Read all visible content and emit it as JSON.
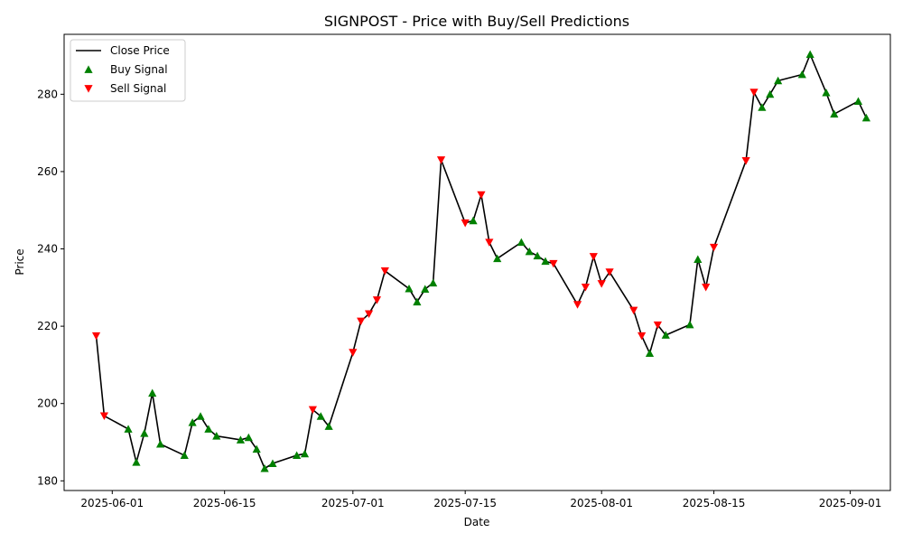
{
  "chart_data": {
    "type": "line",
    "title": "SIGNPOST - Price with Buy/Sell Predictions",
    "xlabel": "Date",
    "ylabel": "Price",
    "x_range": [
      "2025-05-26",
      "2025-09-06"
    ],
    "ylim": [
      177.5,
      295.5
    ],
    "x_ticks": [
      "2025-06-01",
      "2025-06-15",
      "2025-07-01",
      "2025-07-15",
      "2025-08-01",
      "2025-08-15",
      "2025-09-01"
    ],
    "y_ticks": [
      180,
      200,
      220,
      240,
      260,
      280
    ],
    "grid": false,
    "legend_position": "upper-left",
    "series": [
      {
        "name": "Close Price",
        "mark": "line",
        "color": "#000000",
        "points": [
          [
            "2025-05-30",
            217.5
          ],
          [
            "2025-05-31",
            196.8
          ],
          [
            "2025-06-03",
            193.4
          ],
          [
            "2025-06-04",
            184.8
          ],
          [
            "2025-06-05",
            192.3
          ],
          [
            "2025-06-06",
            202.7
          ],
          [
            "2025-06-07",
            189.5
          ],
          [
            "2025-06-10",
            186.6
          ],
          [
            "2025-06-11",
            195.1
          ],
          [
            "2025-06-12",
            196.7
          ],
          [
            "2025-06-13",
            193.4
          ],
          [
            "2025-06-14",
            191.6
          ],
          [
            "2025-06-17",
            190.6
          ],
          [
            "2025-06-18",
            191.2
          ],
          [
            "2025-06-19",
            188.2
          ],
          [
            "2025-06-20",
            183.2
          ],
          [
            "2025-06-21",
            184.5
          ],
          [
            "2025-06-24",
            186.6
          ],
          [
            "2025-06-25",
            187.0
          ],
          [
            "2025-06-26",
            198.4
          ],
          [
            "2025-06-27",
            196.7
          ],
          [
            "2025-06-28",
            194.1
          ],
          [
            "2025-07-01",
            213.2
          ],
          [
            "2025-07-02",
            221.3
          ],
          [
            "2025-07-03",
            223.2
          ],
          [
            "2025-07-04",
            226.8
          ],
          [
            "2025-07-05",
            234.3
          ],
          [
            "2025-07-08",
            229.7
          ],
          [
            "2025-07-09",
            226.3
          ],
          [
            "2025-07-10",
            229.6
          ],
          [
            "2025-07-11",
            231.2
          ],
          [
            "2025-07-12",
            263.0
          ],
          [
            "2025-07-15",
            246.7
          ],
          [
            "2025-07-16",
            247.3
          ],
          [
            "2025-07-17",
            254.0
          ],
          [
            "2025-07-18",
            241.7
          ],
          [
            "2025-07-19",
            237.5
          ],
          [
            "2025-07-22",
            241.7
          ],
          [
            "2025-07-23",
            239.3
          ],
          [
            "2025-07-24",
            238.2
          ],
          [
            "2025-07-25",
            236.8
          ],
          [
            "2025-07-26",
            236.2
          ],
          [
            "2025-07-29",
            225.6
          ],
          [
            "2025-07-30",
            230.1
          ],
          [
            "2025-07-31",
            238.0
          ],
          [
            "2025-08-01",
            231.0
          ],
          [
            "2025-08-02",
            234.0
          ],
          [
            "2025-08-05",
            224.1
          ],
          [
            "2025-08-06",
            217.5
          ],
          [
            "2025-08-07",
            213.0
          ],
          [
            "2025-08-08",
            220.3
          ],
          [
            "2025-08-09",
            217.7
          ],
          [
            "2025-08-12",
            220.4
          ],
          [
            "2025-08-13",
            237.3
          ],
          [
            "2025-08-14",
            230.1
          ],
          [
            "2025-08-15",
            240.4
          ],
          [
            "2025-08-19",
            262.8
          ],
          [
            "2025-08-20",
            280.5
          ],
          [
            "2025-08-21",
            276.6
          ],
          [
            "2025-08-22",
            280.0
          ],
          [
            "2025-08-23",
            283.5
          ],
          [
            "2025-08-26",
            285.1
          ],
          [
            "2025-08-27",
            290.3
          ],
          [
            "2025-08-29",
            280.4
          ],
          [
            "2025-08-30",
            274.9
          ],
          [
            "2025-09-02",
            278.2
          ],
          [
            "2025-09-03",
            273.9
          ]
        ]
      },
      {
        "name": "Buy Signal",
        "mark": "triangle-up",
        "color": "#008000",
        "points": [
          [
            "2025-06-03",
            193.4
          ],
          [
            "2025-06-04",
            184.8
          ],
          [
            "2025-06-05",
            192.3
          ],
          [
            "2025-06-06",
            202.7
          ],
          [
            "2025-06-07",
            189.5
          ],
          [
            "2025-06-10",
            186.6
          ],
          [
            "2025-06-11",
            195.1
          ],
          [
            "2025-06-12",
            196.7
          ],
          [
            "2025-06-13",
            193.4
          ],
          [
            "2025-06-14",
            191.6
          ],
          [
            "2025-06-17",
            190.6
          ],
          [
            "2025-06-18",
            191.2
          ],
          [
            "2025-06-19",
            188.2
          ],
          [
            "2025-06-20",
            183.2
          ],
          [
            "2025-06-21",
            184.5
          ],
          [
            "2025-06-24",
            186.6
          ],
          [
            "2025-06-25",
            187.0
          ],
          [
            "2025-06-27",
            196.7
          ],
          [
            "2025-06-28",
            194.1
          ],
          [
            "2025-07-08",
            229.7
          ],
          [
            "2025-07-09",
            226.3
          ],
          [
            "2025-07-10",
            229.6
          ],
          [
            "2025-07-11",
            231.2
          ],
          [
            "2025-07-16",
            247.3
          ],
          [
            "2025-07-19",
            237.5
          ],
          [
            "2025-07-22",
            241.7
          ],
          [
            "2025-07-23",
            239.3
          ],
          [
            "2025-07-24",
            238.2
          ],
          [
            "2025-07-25",
            236.8
          ],
          [
            "2025-08-07",
            213.0
          ],
          [
            "2025-08-09",
            217.7
          ],
          [
            "2025-08-12",
            220.4
          ],
          [
            "2025-08-13",
            237.3
          ],
          [
            "2025-08-21",
            276.6
          ],
          [
            "2025-08-22",
            280.0
          ],
          [
            "2025-08-23",
            283.5
          ],
          [
            "2025-08-26",
            285.1
          ],
          [
            "2025-08-27",
            290.3
          ],
          [
            "2025-08-29",
            280.4
          ],
          [
            "2025-08-30",
            274.9
          ],
          [
            "2025-09-02",
            278.2
          ],
          [
            "2025-09-03",
            273.9
          ]
        ]
      },
      {
        "name": "Sell Signal",
        "mark": "triangle-down",
        "color": "#ff0000",
        "points": [
          [
            "2025-05-30",
            217.5
          ],
          [
            "2025-05-31",
            196.8
          ],
          [
            "2025-06-26",
            198.4
          ],
          [
            "2025-07-01",
            213.2
          ],
          [
            "2025-07-02",
            221.3
          ],
          [
            "2025-07-03",
            223.2
          ],
          [
            "2025-07-04",
            226.8
          ],
          [
            "2025-07-05",
            234.3
          ],
          [
            "2025-07-12",
            263.0
          ],
          [
            "2025-07-15",
            246.7
          ],
          [
            "2025-07-17",
            254.0
          ],
          [
            "2025-07-18",
            241.7
          ],
          [
            "2025-07-26",
            236.2
          ],
          [
            "2025-07-29",
            225.6
          ],
          [
            "2025-07-30",
            230.1
          ],
          [
            "2025-07-31",
            238.0
          ],
          [
            "2025-08-01",
            231.0
          ],
          [
            "2025-08-02",
            234.0
          ],
          [
            "2025-08-05",
            224.1
          ],
          [
            "2025-08-06",
            217.5
          ],
          [
            "2025-08-08",
            220.3
          ],
          [
            "2025-08-14",
            230.1
          ],
          [
            "2025-08-15",
            240.4
          ],
          [
            "2025-08-19",
            262.8
          ],
          [
            "2025-08-20",
            280.5
          ]
        ]
      }
    ]
  }
}
